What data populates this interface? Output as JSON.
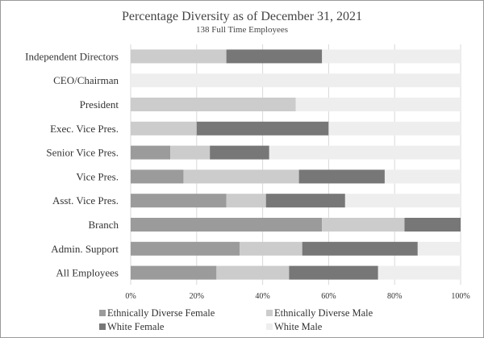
{
  "chart_data": {
    "type": "bar",
    "orientation": "horizontal",
    "stacked": true,
    "title": "Percentage Diversity as of December 31, 2021",
    "subtitle": "138 Full Time Employees",
    "xlabel": "",
    "ylabel": "",
    "xlim": [
      0,
      100
    ],
    "x_ticks": [
      "0%",
      "20%",
      "40%",
      "60%",
      "80%",
      "100%"
    ],
    "x_tick_values": [
      0,
      20,
      40,
      60,
      80,
      100
    ],
    "grid": true,
    "legend_position": "bottom",
    "categories": [
      "Independent Directors",
      "CEO/Chairman",
      "President",
      "Exec. Vice Pres.",
      "Senior Vice Pres.",
      "Vice Pres.",
      "Asst. Vice Pres.",
      "Branch",
      "Admin. Support",
      "All Employees"
    ],
    "series": [
      {
        "name": "Ethnically Diverse Female",
        "color": "#9b9b9b",
        "values": [
          0,
          0,
          0,
          0,
          12,
          16,
          29,
          58,
          33,
          26
        ]
      },
      {
        "name": "Ethnically Diverse Male",
        "color": "#cccccc",
        "values": [
          29,
          0,
          50,
          20,
          12,
          35,
          12,
          25,
          19,
          22
        ]
      },
      {
        "name": "White Female",
        "color": "#777777",
        "values": [
          29,
          0,
          0,
          40,
          18,
          26,
          24,
          17,
          35,
          27
        ]
      },
      {
        "name": "White Male",
        "color": "#eeeeee",
        "values": [
          42,
          100,
          50,
          40,
          58,
          23,
          35,
          0,
          13,
          25
        ]
      }
    ]
  }
}
